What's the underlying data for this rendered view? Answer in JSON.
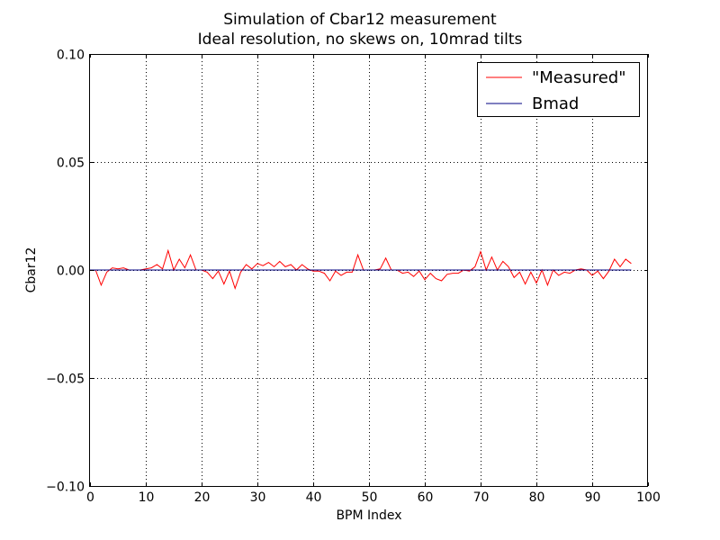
{
  "chart_data": {
    "type": "line",
    "title": "Simulation of Cbar12 measurement",
    "subtitle": "Ideal resolution, no skews on, 10mrad tilts",
    "xlabel": "BPM Index",
    "ylabel": "Cbar12",
    "xlim": [
      0,
      100
    ],
    "ylim": [
      -0.1,
      0.1
    ],
    "xticks": [
      0,
      10,
      20,
      30,
      40,
      50,
      60,
      70,
      80,
      90,
      100
    ],
    "xtick_labels": [
      "0",
      "10",
      "20",
      "30",
      "40",
      "50",
      "60",
      "70",
      "80",
      "90",
      "100"
    ],
    "yticks": [
      -0.1,
      -0.05,
      0.0,
      0.05,
      0.1
    ],
    "ytick_labels": [
      "−0.10",
      "−0.05",
      "0.00",
      "0.05",
      "0.10"
    ],
    "grid": true,
    "legend_position": "top-right",
    "x": [
      0,
      1,
      2,
      3,
      4,
      5,
      6,
      7,
      8,
      9,
      10,
      11,
      12,
      13,
      14,
      15,
      16,
      17,
      18,
      19,
      20,
      21,
      22,
      23,
      24,
      25,
      26,
      27,
      28,
      29,
      30,
      31,
      32,
      33,
      34,
      35,
      36,
      37,
      38,
      39,
      40,
      41,
      42,
      43,
      44,
      45,
      46,
      47,
      48,
      49,
      50,
      51,
      52,
      53,
      54,
      55,
      56,
      57,
      58,
      59,
      60,
      61,
      62,
      63,
      64,
      65,
      66,
      67,
      68,
      69,
      70,
      71,
      72,
      73,
      74,
      75,
      76,
      77,
      78,
      79,
      80,
      81,
      82,
      83,
      84,
      85,
      86,
      87,
      88,
      89,
      90,
      91,
      92,
      93,
      94,
      95,
      96,
      97
    ],
    "series": [
      {
        "name": "\"Measured\"",
        "color": "#ff0000",
        "values": [
          0.0,
          0.0,
          -0.007,
          -0.001,
          0.001,
          0.0005,
          0.001,
          0.0,
          0.0,
          0.0,
          0.0005,
          0.001,
          0.0025,
          0.0005,
          0.009,
          0.0,
          0.005,
          0.001,
          0.007,
          0.0,
          0.0,
          -0.001,
          -0.004,
          -0.0005,
          -0.0065,
          -0.0005,
          -0.0085,
          -0.001,
          0.0025,
          0.0005,
          0.003,
          0.002,
          0.0035,
          0.0015,
          0.004,
          0.0015,
          0.0025,
          0.0,
          0.0025,
          0.0005,
          -0.0005,
          -0.0005,
          -0.0015,
          -0.005,
          -0.0005,
          -0.0025,
          -0.001,
          -0.001,
          0.007,
          0.0,
          0.0,
          0.0,
          0.0005,
          0.0055,
          0.0,
          0.0,
          -0.0015,
          -0.001,
          -0.003,
          -0.0005,
          -0.0045,
          -0.0015,
          -0.004,
          -0.005,
          -0.002,
          -0.0015,
          -0.0015,
          0.0,
          -0.0005,
          0.0015,
          0.0085,
          0.0,
          0.006,
          0.0,
          0.004,
          0.0015,
          -0.0035,
          -0.001,
          -0.0065,
          -0.001,
          -0.006,
          0.0,
          -0.007,
          0.0,
          -0.0025,
          -0.001,
          -0.0015,
          0.0,
          0.0005,
          0.0,
          -0.0025,
          -0.0005,
          -0.004,
          -0.0005,
          0.005,
          0.0015,
          0.005,
          0.003
        ]
      },
      {
        "name": "Bmad",
        "color": "#000080",
        "values": [
          0,
          0,
          0,
          0,
          0,
          0,
          0,
          0,
          0,
          0,
          0,
          0,
          0,
          0,
          0,
          0,
          0,
          0,
          0,
          0,
          0,
          0,
          0,
          0,
          0,
          0,
          0,
          0,
          0,
          0,
          0,
          0,
          0,
          0,
          0,
          0,
          0,
          0,
          0,
          0,
          0,
          0,
          0,
          0,
          0,
          0,
          0,
          0,
          0,
          0,
          0,
          0,
          0,
          0,
          0,
          0,
          0,
          0,
          0,
          0,
          0,
          0,
          0,
          0,
          0,
          0,
          0,
          0,
          0,
          0,
          0,
          0,
          0,
          0,
          0,
          0,
          0,
          0,
          0,
          0,
          0,
          0,
          0,
          0,
          0,
          0,
          0,
          0,
          0,
          0,
          0,
          0,
          0,
          0,
          0,
          0,
          0,
          0
        ]
      }
    ]
  }
}
